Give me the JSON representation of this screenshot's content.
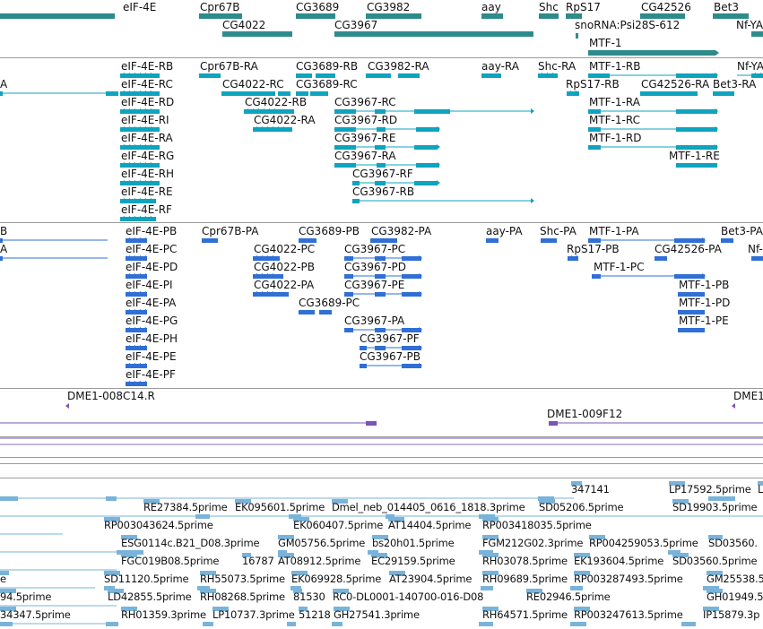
{
  "colors": {
    "gene": "#2e8b8b",
    "transcript_mrna": "#0fa3be",
    "transcript_protein": "#2f6fd6",
    "clone": "#7a55b3",
    "est": "#7ab3d9",
    "track_line": "#8a8a8a"
  },
  "gene_track": [
    {
      "id": "eIF-4E",
      "label": "eIF-4E"
    },
    {
      "id": "Cpr67B",
      "label": "Cpr67B"
    },
    {
      "id": "CG4022",
      "label": "CG4022"
    },
    {
      "id": "CG3689",
      "label": "CG3689"
    },
    {
      "id": "CG3982",
      "label": "CG3982"
    },
    {
      "id": "CG3967",
      "label": "CG3967"
    },
    {
      "id": "aay",
      "label": "aay"
    },
    {
      "id": "Shc",
      "label": "Shc"
    },
    {
      "id": "RpS17",
      "label": "RpS17"
    },
    {
      "id": "snoRNA",
      "label": "snoRNA:Psi28S-612"
    },
    {
      "id": "CG42526",
      "label": "CG42526"
    },
    {
      "id": "Bet3",
      "label": "Bet3"
    },
    {
      "id": "NfYA",
      "label": "Nf-YA"
    },
    {
      "id": "MTF1",
      "label": "MTF-1"
    }
  ],
  "mrna_track": [
    "eIF-4E-RB",
    "eIF-4E-RC",
    "eIF-4E-RD",
    "eIF-4E-RI",
    "eIF-4E-RA",
    "eIF-4E-RG",
    "eIF-4E-RH",
    "eIF-4E-RE",
    "eIF-4E-RF",
    "Cpr67B-RA",
    "CG4022-RC",
    "CG4022-RB",
    "CG4022-RA",
    "CG3689-RB",
    "CG3689-RC",
    "CG3982-RA",
    "CG3967-RC",
    "CG3967-RD",
    "CG3967-RE",
    "CG3967-RA",
    "CG3967-RF",
    "CG3967-RB",
    "aay-RA",
    "Shc-RA",
    "RpS17-RB",
    "MTF-1-RB",
    "MTF-1-RA",
    "MTF-1-RC",
    "MTF-1-RD",
    "MTF-1-RE",
    "CG42526-RA",
    "Bet3-RA",
    "Nf-YA",
    "A"
  ],
  "protein_track": [
    "eIF-4E-PB",
    "eIF-4E-PC",
    "eIF-4E-PD",
    "eIF-4E-PI",
    "eIF-4E-PA",
    "eIF-4E-PG",
    "eIF-4E-PH",
    "eIF-4E-PE",
    "eIF-4E-PF",
    "Cpr67B-PA",
    "CG4022-PC",
    "CG4022-PB",
    "CG4022-PA",
    "CG3689-PB",
    "CG3689-PC",
    "CG3982-PA",
    "CG3967-PC",
    "CG3967-PD",
    "CG3967-PE",
    "CG3967-PA",
    "CG3967-PF",
    "CG3967-PB",
    "aay-PA",
    "Shc-PA",
    "RpS17-PB",
    "MTF-1-PA",
    "MTF-1-PC",
    "MTF-1-PB",
    "MTF-1-PD",
    "MTF-1-PE",
    "CG42526-PA",
    "Bet3-PA",
    "Nf-",
    "B",
    "A"
  ],
  "clone_track": [
    "DME1-008C14.R",
    "DME1-009F12",
    "DME1"
  ],
  "est_track": [
    "347141",
    "LP17592.5prime",
    "L",
    "RE27384.5prime",
    "EK095601.5prime",
    "Dmel_neb_014405_0616_1818.3prime",
    "SD05206.5prime",
    "SD19903.5prime",
    "RP003043624.5prime",
    "EK060407.5prime",
    "AT14404.5prime",
    "RP003418035.5prime",
    "ESG0114c.B21_D08.3prime",
    "GM05756.5prime",
    "bs20h01.5prime",
    "FGM212G02.3prime",
    "RP004259053.5prime",
    "SD03560.",
    "FGC019B08.5prime",
    "16787",
    "AT08912.5prime",
    "EC29159.5prime",
    "RH03078.5prime",
    "EK193604.5prime",
    "SD03560.5prime",
    "e",
    "SD11120.5prime",
    "RH55073.5prime",
    "EK069928.5prime",
    "AT23904.5prime",
    "RH09689.5prime",
    "RP003287493.5prime",
    "GM25538.5p",
    "94.5prime",
    "LD42855.5prime",
    "RH08268.5prime",
    "81530",
    "RC0-DL0001-140700-016-D08",
    "RE02946.5prime",
    "GH01949.5prim",
    "34347.5prime",
    "RH01359.3prime",
    "LP10737.3prime",
    "51218",
    "GH27541.3prime",
    "RH64571.5prime",
    "RP003247613.5prime",
    "IP15879.3p"
  ]
}
